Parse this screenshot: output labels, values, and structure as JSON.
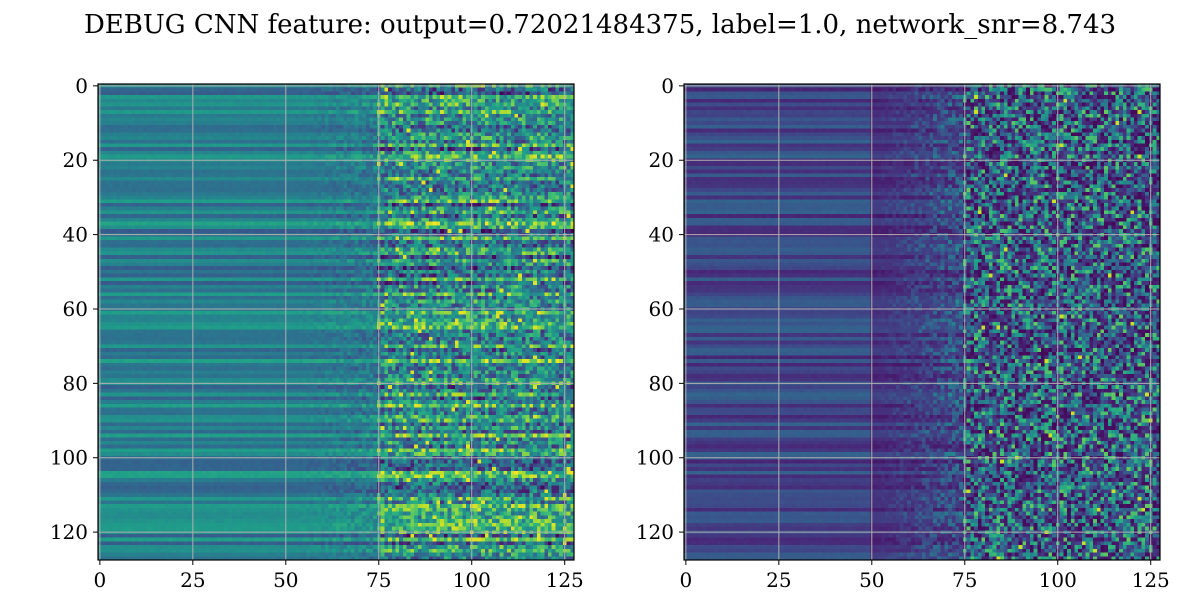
{
  "figure": {
    "title": "DEBUG CNN feature: output=0.72021484375, label=1.0, network_snr=8.743"
  },
  "chart_data": [
    {
      "type": "heatmap",
      "colormap": "viridis",
      "rows": 128,
      "cols": 128,
      "xlim": [
        0,
        128
      ],
      "ylim": [
        128,
        0
      ],
      "xticks": [
        0,
        25,
        50,
        75,
        100,
        125
      ],
      "yticks": [
        0,
        20,
        40,
        60,
        80,
        100,
        120
      ],
      "grid": true,
      "grid_color": "#b0b0b0",
      "title": "",
      "xlabel": "",
      "ylabel": ""
    },
    {
      "type": "heatmap",
      "colormap": "viridis",
      "rows": 128,
      "cols": 128,
      "xlim": [
        0,
        128
      ],
      "ylim": [
        128,
        0
      ],
      "xticks": [
        0,
        25,
        50,
        75,
        100,
        125
      ],
      "yticks": [
        0,
        20,
        40,
        60,
        80,
        100,
        120
      ],
      "grid": true,
      "grid_color": "#b0b0b0",
      "title": "",
      "xlabel": "",
      "ylabel": ""
    }
  ]
}
